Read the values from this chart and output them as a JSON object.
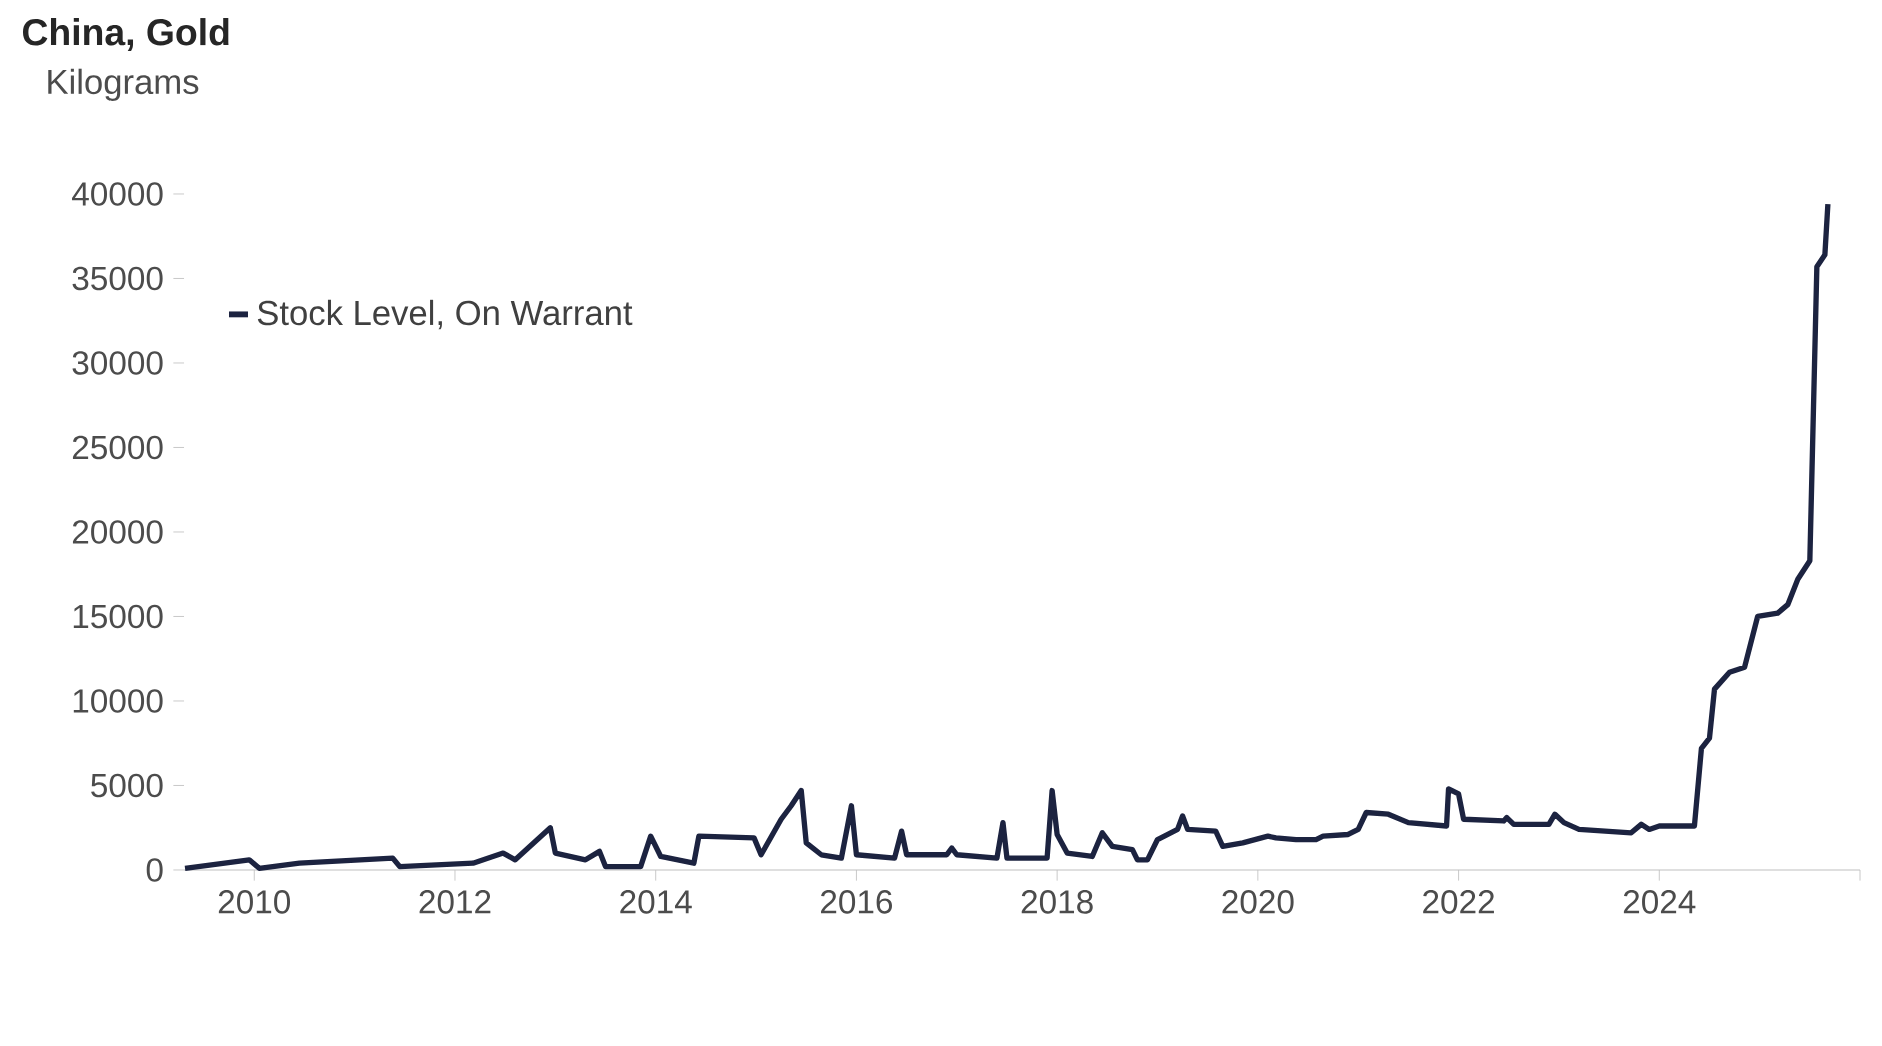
{
  "chart_data": {
    "type": "line",
    "title": "China, Gold",
    "ylabel": "Kilograms",
    "x": [
      2009.31,
      2009.95,
      2010.05,
      2010.45,
      2011.38,
      2011.45,
      2012.18,
      2012.48,
      2012.6,
      2012.95,
      2013.0,
      2013.3,
      2013.44,
      2013.5,
      2013.85,
      2013.95,
      2014.05,
      2014.38,
      2014.43,
      2014.98,
      2015.05,
      2015.25,
      2015.35,
      2015.45,
      2015.5,
      2015.65,
      2015.85,
      2015.95,
      2016.0,
      2016.38,
      2016.45,
      2016.5,
      2016.9,
      2016.95,
      2017.0,
      2017.4,
      2017.46,
      2017.5,
      2017.9,
      2017.95,
      2018.0,
      2018.1,
      2018.35,
      2018.45,
      2018.55,
      2018.75,
      2018.8,
      2018.9,
      2019.0,
      2019.2,
      2019.25,
      2019.3,
      2019.58,
      2019.65,
      2019.85,
      2020.1,
      2020.18,
      2020.38,
      2020.58,
      2020.65,
      2020.9,
      2021.0,
      2021.08,
      2021.3,
      2021.5,
      2021.88,
      2021.9,
      2022.0,
      2022.05,
      2022.45,
      2022.48,
      2022.55,
      2022.9,
      2022.96,
      2023.05,
      2023.2,
      2023.72,
      2023.82,
      2023.9,
      2024.0,
      2024.35,
      2024.42,
      2024.5,
      2024.55,
      2024.7,
      2024.85,
      2024.98,
      2025.18,
      2025.28,
      2025.38,
      2025.5,
      2025.57,
      2025.65,
      2025.68
    ],
    "series": [
      {
        "name": "Stock Level, On Warrant",
        "color": "#1c2340",
        "values": [
          100,
          600,
          100,
          400,
          700,
          200,
          400,
          1000,
          600,
          2500,
          1000,
          600,
          1100,
          200,
          200,
          2000,
          800,
          400,
          2000,
          1900,
          900,
          3000,
          3800,
          4700,
          1600,
          900,
          700,
          3800,
          900,
          700,
          2300,
          900,
          900,
          1300,
          900,
          700,
          2800,
          700,
          700,
          4700,
          2100,
          1000,
          800,
          2200,
          1400,
          1200,
          600,
          600,
          1800,
          2400,
          3200,
          2400,
          2300,
          1400,
          1600,
          2000,
          1900,
          1800,
          1800,
          2000,
          2100,
          2400,
          3400,
          3300,
          2800,
          2600,
          4800,
          4500,
          3000,
          2900,
          3100,
          2700,
          2700,
          3300,
          2800,
          2400,
          2200,
          2700,
          2400,
          2600,
          2600,
          7200,
          7800,
          10700,
          11700,
          12000,
          15000,
          15200,
          15700,
          17200,
          18300,
          35700,
          36400,
          39400
        ]
      }
    ],
    "xlim": [
      2009.3,
      2026
    ],
    "xticks": [
      2010,
      2012,
      2014,
      2016,
      2018,
      2020,
      2022,
      2024,
      {
        "value": 2026,
        "label": null
      }
    ],
    "ylim": [
      0,
      40000
    ],
    "yticks": [
      0,
      5000,
      10000,
      15000,
      20000,
      25000,
      30000,
      35000,
      40000
    ],
    "legend": "top left",
    "grid": false,
    "marker": "none",
    "line_style": "solid"
  }
}
